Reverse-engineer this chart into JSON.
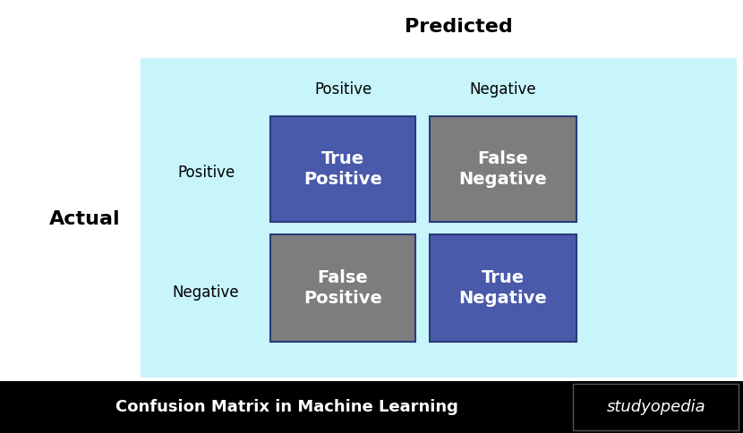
{
  "title": "Predicted",
  "actual_label": "Actual",
  "predicted_positive": "Positive",
  "predicted_negative": "Negative",
  "actual_positive": "Positive",
  "actual_negative": "Negative",
  "cells": [
    {
      "label": "True\nPositive",
      "row": 0,
      "col": 0,
      "color": "#4a5aaa"
    },
    {
      "label": "False\nNegative",
      "row": 0,
      "col": 1,
      "color": "#7d7d7d"
    },
    {
      "label": "False\nPositive",
      "row": 1,
      "col": 0,
      "color": "#7d7d7d"
    },
    {
      "label": "True\nNegative",
      "row": 1,
      "col": 1,
      "color": "#4a5aaa"
    }
  ],
  "bg_color": "#c8f5fc",
  "cell_text_color": "#ffffff",
  "footer_bg": "#000000",
  "footer_text": "Confusion Matrix in Machine Learning",
  "footer_brand": "studyopedia",
  "footer_text_color": "#ffffff",
  "title_fontsize": 16,
  "label_fontsize": 12,
  "cell_fontsize": 14,
  "footer_fontsize": 13,
  "brand_fontsize": 13,
  "cell_edge_color": "#2a3a7a"
}
